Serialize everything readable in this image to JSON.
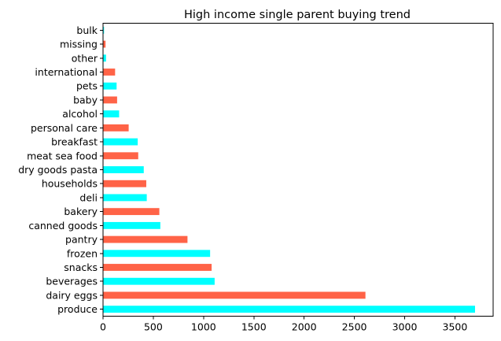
{
  "chart_data": {
    "type": "bar",
    "orientation": "horizontal",
    "title": "High income single parent buying trend",
    "xlabel": "",
    "ylabel": "",
    "categories": [
      "produce",
      "dairy eggs",
      "beverages",
      "snacks",
      "frozen",
      "pantry",
      "canned goods",
      "bakery",
      "deli",
      "households",
      "dry goods pasta",
      "meat sea food",
      "breakfast",
      "personal care",
      "alcohol",
      "baby",
      "pets",
      "international",
      "other",
      "missing",
      "bulk"
    ],
    "values": [
      3700,
      2610,
      1110,
      1080,
      1065,
      840,
      570,
      560,
      435,
      430,
      405,
      350,
      345,
      255,
      160,
      140,
      135,
      120,
      30,
      25,
      10
    ],
    "bar_colors": [
      "#00FFFF",
      "#FF6347"
    ],
    "xlim": [
      0,
      3880
    ],
    "xticks": [
      0,
      500,
      1000,
      1500,
      2000,
      2500,
      3000,
      3500
    ],
    "grid": false,
    "legend": "none"
  }
}
